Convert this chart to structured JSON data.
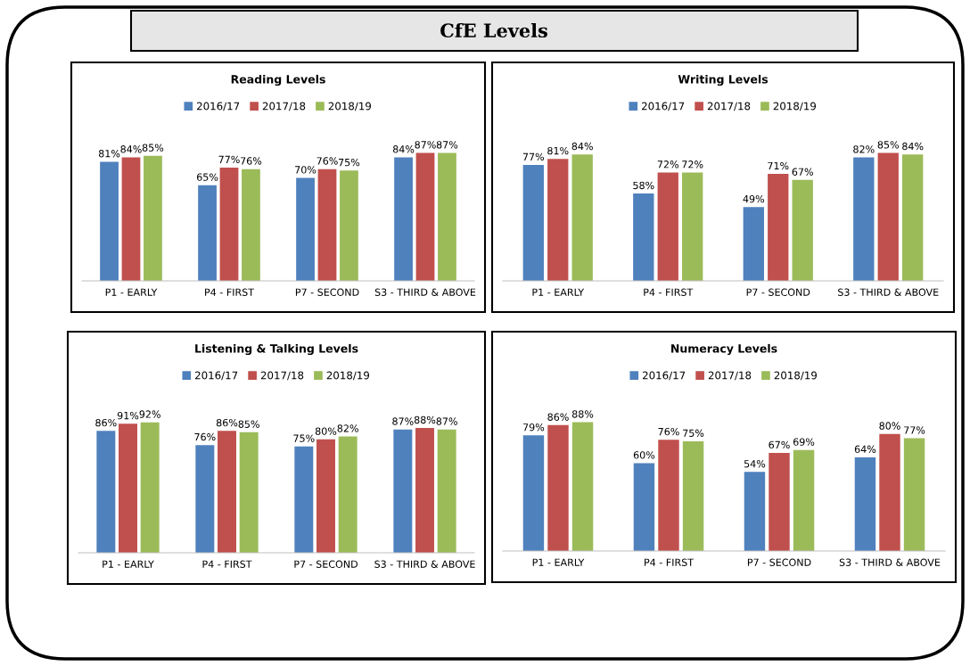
{
  "chart_data": [
    {
      "type": "other",
      "title": "CfE Levels"
    },
    {
      "type": "bar",
      "title": "Reading Levels",
      "categories": [
        "P1 - EARLY",
        "P4 - FIRST",
        "P7 - SECOND",
        "S3 - THIRD & ABOVE"
      ],
      "legend": "top",
      "tick_labels": "x",
      "series": [
        {
          "name": "2016/17",
          "color": "#4f81bd",
          "values": [
            81,
            65,
            70,
            84
          ],
          "value_labels": [
            "81%",
            "65%",
            "70%",
            "84%"
          ]
        },
        {
          "name": "2017/18",
          "color": "#c0504d",
          "values": [
            84,
            77,
            76,
            87
          ],
          "value_labels": [
            "84%",
            "77%",
            "76%",
            "87%"
          ]
        },
        {
          "name": "2018/19",
          "color": "#9bbb59",
          "values": [
            85,
            76,
            75,
            87
          ],
          "value_labels": [
            "85%",
            "76%",
            "75%",
            "87%"
          ]
        }
      ]
    },
    {
      "type": "bar",
      "title": "Writing Levels",
      "categories": [
        "P1 - EARLY",
        "P4 - FIRST",
        "P7 - SECOND",
        "S3 - THIRD & ABOVE"
      ],
      "legend": "top",
      "tick_labels": "x",
      "series": [
        {
          "name": "2016/17",
          "color": "#4f81bd",
          "values": [
            77,
            58,
            49,
            82
          ],
          "value_labels": [
            "77%",
            "58%",
            "49%",
            "82%"
          ]
        },
        {
          "name": "2017/18",
          "color": "#c0504d",
          "values": [
            81,
            72,
            71,
            85
          ],
          "value_labels": [
            "81%",
            "72%",
            "71%",
            "85%"
          ]
        },
        {
          "name": "2018/19",
          "color": "#9bbb59",
          "values": [
            84,
            72,
            67,
            84
          ],
          "value_labels": [
            "84%",
            "72%",
            "67%",
            "84%"
          ]
        }
      ]
    },
    {
      "type": "bar",
      "title": "Listening & Talking Levels",
      "categories": [
        "P1 - EARLY",
        "P4 - FIRST",
        "P7 - SECOND",
        "S3 - THIRD & ABOVE"
      ],
      "legend": "top",
      "tick_labels": "x",
      "series": [
        {
          "name": "2016/17",
          "color": "#4f81bd",
          "values": [
            86,
            76,
            75,
            87
          ],
          "value_labels": [
            "86%",
            "76%",
            "75%",
            "87%"
          ]
        },
        {
          "name": "2017/18",
          "color": "#c0504d",
          "values": [
            91,
            86,
            80,
            88
          ],
          "value_labels": [
            "91%",
            "86%",
            "80%",
            "88%"
          ]
        },
        {
          "name": "2018/19",
          "color": "#9bbb59",
          "values": [
            92,
            85,
            82,
            87
          ],
          "value_labels": [
            "92%",
            "85%",
            "82%",
            "87%"
          ]
        }
      ]
    },
    {
      "type": "bar",
      "title": "Numeracy Levels",
      "categories": [
        "P1 - EARLY",
        "P4 - FIRST",
        "P7 - SECOND",
        "S3 - THIRD & ABOVE"
      ],
      "legend": "top",
      "tick_labels": "x",
      "series": [
        {
          "name": "2016/17",
          "color": "#4f81bd",
          "values": [
            79,
            60,
            54,
            64
          ],
          "value_labels": [
            "79%",
            "60%",
            "54%",
            "64%"
          ]
        },
        {
          "name": "2017/18",
          "color": "#c0504d",
          "values": [
            86,
            76,
            67,
            80
          ],
          "value_labels": [
            "86%",
            "76%",
            "67%",
            "80%"
          ]
        },
        {
          "name": "2018/19",
          "color": "#9bbb59",
          "values": [
            88,
            75,
            69,
            77
          ],
          "value_labels": [
            "88%",
            "75%",
            "69%",
            "77%"
          ]
        }
      ]
    }
  ]
}
